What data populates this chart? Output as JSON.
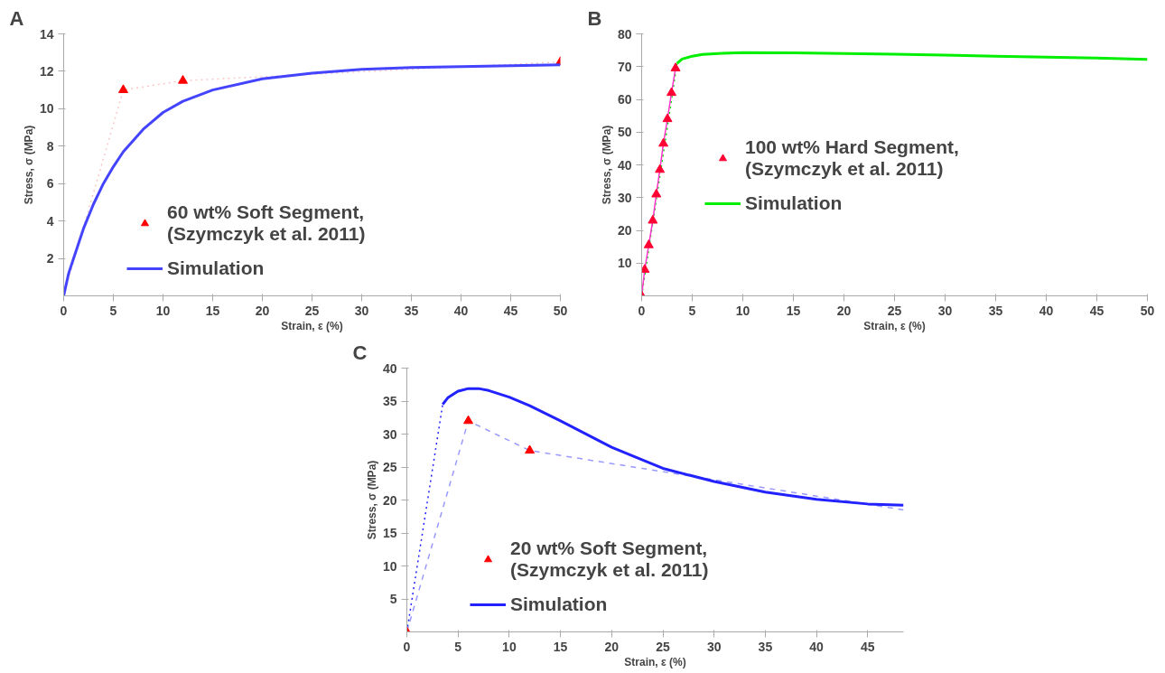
{
  "chart_data": [
    {
      "type": "line",
      "title": "A",
      "xlabel": "Strain, ε (%)",
      "ylabel": "Stress, σ (MPa)",
      "xlim": [
        0,
        50
      ],
      "xticks": [
        0,
        5,
        10,
        15,
        20,
        25,
        30,
        35,
        40,
        45,
        50
      ],
      "ylim": [
        0,
        14
      ],
      "yticks": [
        2,
        4,
        6,
        8,
        10,
        12,
        14
      ],
      "legend": "bottom left",
      "series": [
        {
          "color": "#f8c8c8",
          "line_style": "dotted",
          "x": [
            0,
            6,
            12,
            50
          ],
          "values": [
            0,
            11,
            11.5,
            12.5
          ]
        },
        {
          "type": "scatter",
          "marker": "triangle",
          "name": "60 wt% Soft Segment,\n(Szymczyk et al. 2011)",
          "color": "#ff0000",
          "x": [
            6,
            12,
            50
          ],
          "values": [
            11,
            11.5,
            12.5
          ]
        },
        {
          "line_style": "solid",
          "name": "Simulation",
          "color": "#4444ff",
          "x": [
            0,
            0.5,
            1,
            2,
            3,
            4,
            5,
            6,
            8,
            10,
            12,
            15,
            20,
            25,
            30,
            35,
            40,
            45,
            50
          ],
          "values": [
            0,
            1.2,
            2,
            3.6,
            4.9,
            6,
            6.9,
            7.7,
            8.9,
            9.8,
            10.4,
            11,
            11.6,
            11.9,
            12.1,
            12.2,
            12.25,
            12.3,
            12.35
          ]
        }
      ]
    },
    {
      "type": "line",
      "title": "B",
      "xlabel": "Strain, ε (%)",
      "ylabel": "Stress, σ (MPa)",
      "xlim": [
        0,
        50
      ],
      "xticks": [
        0,
        5,
        10,
        15,
        20,
        25,
        30,
        35,
        40,
        45,
        50
      ],
      "ylim": [
        0,
        80
      ],
      "yticks": [
        10,
        20,
        30,
        40,
        50,
        60,
        70,
        80
      ],
      "legend": "left",
      "series": [
        {
          "color": "#00dd00",
          "line_style": "dotted",
          "x": [
            0,
            3.5
          ],
          "values": [
            0,
            71
          ]
        },
        {
          "color": "#ff33cc",
          "line_style": "solid",
          "x": [
            0,
            0.3,
            0.7,
            1.1,
            1.45,
            1.8,
            2.15,
            2.55,
            2.95,
            3.35
          ],
          "values": [
            0,
            8,
            15.5,
            23,
            31,
            38.5,
            46.5,
            54,
            62,
            69.5
          ]
        },
        {
          "type": "scatter",
          "marker": "triangle",
          "name": "100 wt% Hard Segment,\n(Szymczyk et al. 2011)",
          "color": "#ff0033",
          "x": [
            0,
            0.3,
            0.7,
            1.1,
            1.45,
            1.8,
            2.15,
            2.55,
            2.95,
            3.35
          ],
          "values": [
            0,
            8,
            15.5,
            23,
            31,
            38.5,
            46.5,
            54,
            62,
            69.5
          ]
        },
        {
          "line_style": "solid",
          "name": "Simulation",
          "color": "#00ee00",
          "x": [
            3.5,
            4,
            5,
            6,
            8,
            10,
            15,
            20,
            25,
            30,
            35,
            40,
            45,
            50
          ],
          "values": [
            71,
            72.3,
            73.2,
            73.7,
            74.1,
            74.3,
            74.2,
            74,
            73.8,
            73.5,
            73.2,
            72.9,
            72.6,
            72.2
          ]
        }
      ]
    },
    {
      "type": "line",
      "title": "C",
      "xlabel": "Strain, ε (%)",
      "ylabel": "Stress, σ (MPa)",
      "xlim": [
        0,
        48.5
      ],
      "xticks": [
        0,
        5,
        10,
        15,
        20,
        25,
        30,
        35,
        40,
        45
      ],
      "ylim": [
        0,
        40
      ],
      "yticks": [
        5,
        10,
        15,
        20,
        25,
        30,
        35,
        40
      ],
      "legend": "bottom left",
      "series": [
        {
          "color": "#9999ff",
          "line_style": "dashed",
          "x": [
            0,
            6,
            12,
            48.5
          ],
          "values": [
            0,
            32,
            27.5,
            18.5
          ]
        },
        {
          "color": "#2222ff",
          "line_style": "dotted",
          "x": [
            0,
            3.5
          ],
          "values": [
            0,
            34.5
          ]
        },
        {
          "type": "scatter",
          "marker": "triangle",
          "name": "20 wt% Soft Segment,\n(Szymczyk et al. 2011)",
          "color": "#ff0000",
          "x": [
            0,
            6,
            12
          ],
          "values": [
            0,
            32,
            27.5
          ]
        },
        {
          "line_style": "solid",
          "name": "Simulation",
          "color": "#2222ff",
          "x": [
            3.5,
            4,
            5,
            6,
            7,
            8,
            10,
            12,
            15,
            20,
            25,
            30,
            35,
            40,
            45,
            48.5
          ],
          "values": [
            34.5,
            35.5,
            36.5,
            36.9,
            36.9,
            36.6,
            35.6,
            34.3,
            32,
            28,
            24.8,
            22.8,
            21.2,
            20.1,
            19.4,
            19.2
          ]
        }
      ]
    }
  ]
}
